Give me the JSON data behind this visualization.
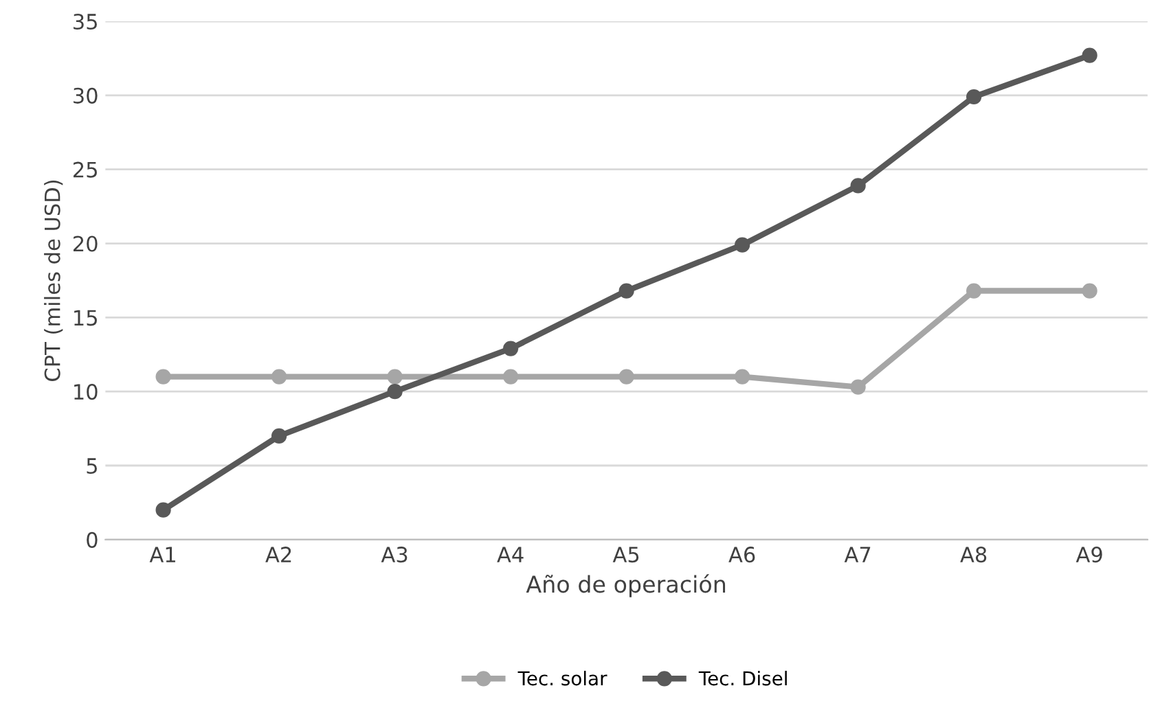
{
  "chart_data": {
    "type": "line",
    "xlabel": "Año de operación",
    "ylabel": "CPT (miles de USD)",
    "categories": [
      "A1",
      "A2",
      "A3",
      "A4",
      "A5",
      "A6",
      "A7",
      "A8",
      "A9"
    ],
    "series": [
      {
        "name": "Tec. solar",
        "color": "#a6a6a6",
        "values": [
          11,
          11,
          11,
          11,
          11,
          11,
          10.3,
          16.8,
          16.8
        ]
      },
      {
        "name": "Tec. Disel",
        "color": "#595959",
        "values": [
          2,
          7,
          10,
          12.9,
          16.8,
          19.9,
          23.9,
          29.9,
          32.7
        ]
      }
    ],
    "ylim": [
      0,
      35
    ],
    "yticks": [
      0,
      5,
      10,
      15,
      20,
      25,
      30,
      35
    ],
    "grid": "y",
    "legend": "bottom",
    "marker": "circle",
    "line_style": "solid"
  }
}
